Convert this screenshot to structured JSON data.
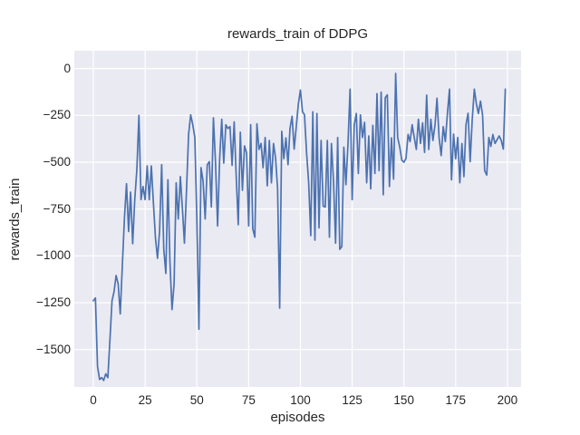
{
  "chart_data": {
    "type": "line",
    "title": "rewards_train of DDPG",
    "xlabel": "episodes",
    "ylabel": "rewards_train",
    "x_ticks": [
      0,
      25,
      50,
      75,
      100,
      125,
      150,
      175,
      200
    ],
    "y_ticks": [
      0,
      -250,
      -500,
      -750,
      -1000,
      -1250,
      -1500
    ],
    "xlim": [
      -9.2,
      206.6
    ],
    "ylim": [
      -1700,
      95
    ],
    "grid": true,
    "legend": null,
    "colors": {
      "line": "#4C72B0",
      "plot_background": "#EAEAF2",
      "grid": "#ffffff",
      "text": "#262626",
      "figure_background": "#ffffff"
    },
    "series": [
      {
        "name": "rewards_train",
        "x_start": 0,
        "x_step": 1,
        "values": [
          -1240,
          -1225,
          -1590,
          -1660,
          -1650,
          -1665,
          -1630,
          -1650,
          -1450,
          -1240,
          -1190,
          -1105,
          -1150,
          -1310,
          -1050,
          -800,
          -615,
          -870,
          -660,
          -935,
          -700,
          -540,
          -250,
          -700,
          -630,
          -700,
          -520,
          -700,
          -520,
          -720,
          -908,
          -1013,
          -868,
          -513,
          -965,
          -1094,
          -594,
          -1029,
          -1287,
          -1150,
          -610,
          -803,
          -577,
          -750,
          -932,
          -650,
          -352,
          -247,
          -300,
          -368,
          -800,
          -1392,
          -529,
          -600,
          -803,
          -513,
          -497,
          -739,
          -263,
          -500,
          -840,
          -480,
          -271,
          -505,
          -300,
          -320,
          -310,
          -517,
          -285,
          -570,
          -834,
          -340,
          -650,
          -413,
          -450,
          -840,
          -300,
          -855,
          -900,
          -295,
          -432,
          -400,
          -529,
          -368,
          -626,
          -384,
          -610,
          -400,
          -480,
          -640,
          -1279,
          -335,
          -481,
          -370,
          -513,
          -319,
          -255,
          -430,
          -310,
          -190,
          -115,
          -230,
          -247,
          -450,
          -610,
          -892,
          -231,
          -916,
          -240,
          -851,
          -384,
          -735,
          -739,
          -384,
          -900,
          -400,
          -600,
          -932,
          -368,
          -965,
          -950,
          -420,
          -620,
          -400,
          -110,
          -700,
          -300,
          -240,
          -560,
          -247,
          -368,
          -287,
          -610,
          -360,
          -642,
          -303,
          -560,
          -134,
          -545,
          -126,
          -674,
          -155,
          -140,
          -630,
          -370,
          -590,
          -26,
          -368,
          -420,
          -490,
          -500,
          -480,
          -352,
          -390,
          -300,
          -368,
          -432,
          -271,
          -400,
          -290,
          -448,
          -142,
          -432,
          -271,
          -384,
          -303,
          -158,
          -368,
          -465,
          -310,
          -390,
          -240,
          -110,
          -594,
          -350,
          -481,
          -368,
          -610,
          -400,
          -577,
          -300,
          -239,
          -497,
          -271,
          -110,
          -190,
          -240,
          -174,
          -247,
          -545,
          -569,
          -368,
          -416,
          -352,
          -400,
          -380,
          -360,
          -384,
          -430,
          -110
        ]
      }
    ]
  }
}
